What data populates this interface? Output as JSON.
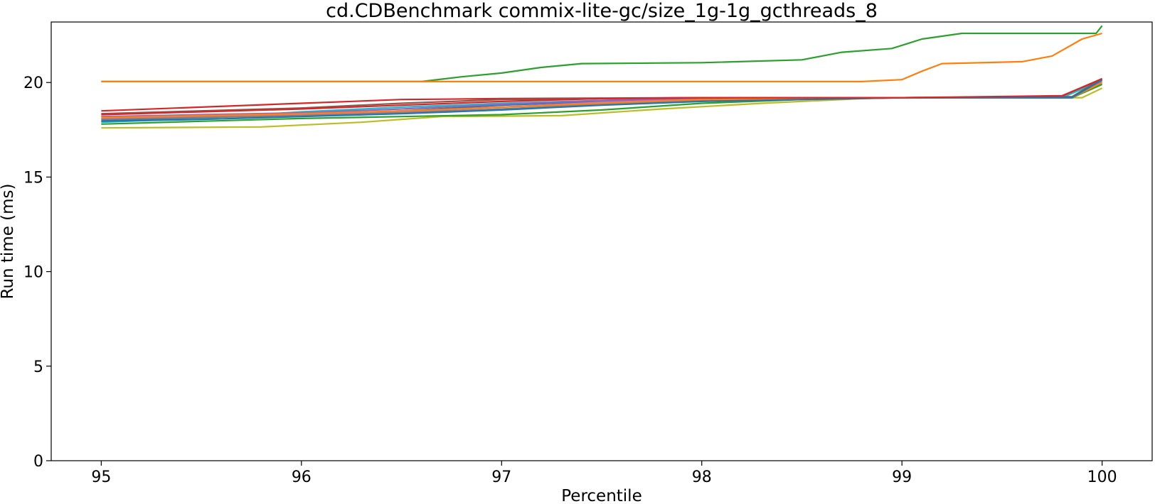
{
  "chart_data": {
    "type": "line",
    "title": "cd.CDBenchmark commix-lite-gc/size_1g-1g_gcthreads_8",
    "xlabel": "Percentile",
    "ylabel": "Run time (ms)",
    "xlim": [
      94.75,
      100.25
    ],
    "ylim": [
      0,
      23.2
    ],
    "xticks": [
      95,
      96,
      97,
      98,
      99,
      100
    ],
    "yticks": [
      0,
      5,
      10,
      15,
      20
    ],
    "grid": false,
    "legend": "none",
    "series": [
      {
        "color": "#2ca02c",
        "x": [
          95,
          96,
          96.6,
          96.8,
          97,
          97.2,
          97.4,
          98,
          98.5,
          98.7,
          98.95,
          99.1,
          99.3,
          99.9,
          99.97,
          100
        ],
        "y": [
          20.05,
          20.05,
          20.05,
          20.3,
          20.5,
          20.8,
          21.0,
          21.05,
          21.2,
          21.6,
          21.8,
          22.3,
          22.6,
          22.6,
          22.6,
          23.0
        ]
      },
      {
        "color": "#ff7f0e",
        "x": [
          95,
          97,
          98,
          98.8,
          99,
          99.1,
          99.2,
          99.6,
          99.75,
          99.9,
          100
        ],
        "y": [
          20.05,
          20.05,
          20.05,
          20.05,
          20.15,
          20.6,
          21.0,
          21.1,
          21.4,
          22.3,
          22.6
        ]
      },
      {
        "color": "#d62728",
        "x": [
          95,
          95.5,
          96,
          96.5,
          97,
          98,
          99,
          99.8,
          99.9,
          100
        ],
        "y": [
          18.5,
          18.7,
          18.9,
          19.1,
          19.15,
          19.2,
          19.2,
          19.25,
          19.7,
          20.2
        ]
      },
      {
        "color": "#bcbd22",
        "x": [
          95,
          95.8,
          96.3,
          96.7,
          97.3,
          97.8,
          98.3,
          98.8,
          99,
          99.9,
          100
        ],
        "y": [
          17.6,
          17.65,
          17.9,
          18.2,
          18.25,
          18.6,
          18.9,
          19.15,
          19.2,
          19.2,
          19.7
        ]
      },
      {
        "color": "#17becf",
        "x": [
          95,
          95.5,
          96,
          96.5,
          97,
          97.5,
          98,
          99,
          99.8,
          100
        ],
        "y": [
          17.9,
          18.1,
          18.45,
          18.7,
          18.9,
          19.05,
          19.15,
          19.2,
          19.2,
          20.1
        ]
      },
      {
        "color": "#1f77b4",
        "x": [
          95,
          95.5,
          96,
          96.5,
          97,
          97.5,
          98,
          99,
          99.85,
          100
        ],
        "y": [
          18.0,
          18.15,
          18.3,
          18.5,
          18.8,
          19.0,
          19.15,
          19.2,
          19.2,
          20.0
        ]
      },
      {
        "color": "#9467bd",
        "x": [
          95,
          95.5,
          96,
          96.5,
          97,
          97.5,
          98,
          99,
          99.85,
          100
        ],
        "y": [
          18.2,
          18.3,
          18.4,
          18.6,
          18.85,
          19.05,
          19.15,
          19.2,
          19.25,
          20.1
        ]
      },
      {
        "color": "#8c564b",
        "x": [
          95,
          95.5,
          96,
          96.5,
          97,
          97.5,
          98,
          99,
          99.85,
          100
        ],
        "y": [
          18.35,
          18.5,
          18.65,
          18.9,
          19.1,
          19.15,
          19.2,
          19.2,
          19.25,
          20.2
        ]
      },
      {
        "color": "#e377c2",
        "x": [
          95,
          95.5,
          96,
          96.5,
          97,
          97.5,
          98,
          99,
          99.85,
          100
        ],
        "y": [
          18.1,
          18.2,
          18.3,
          18.45,
          18.7,
          18.95,
          19.1,
          19.2,
          19.2,
          19.9
        ]
      },
      {
        "color": "#7f7f7f",
        "x": [
          95,
          95.5,
          96,
          96.5,
          97,
          97.5,
          98,
          99,
          99.85,
          100
        ],
        "y": [
          18.05,
          18.15,
          18.25,
          18.4,
          18.6,
          18.85,
          19.05,
          19.2,
          19.2,
          20.0
        ]
      },
      {
        "color": "#2ca02c",
        "x": [
          95,
          95.5,
          96,
          96.5,
          97,
          97.5,
          98,
          98.5,
          99,
          99.85,
          100
        ],
        "y": [
          17.8,
          17.95,
          18.1,
          18.2,
          18.3,
          18.55,
          18.9,
          19.1,
          19.2,
          19.2,
          19.9
        ]
      },
      {
        "color": "#ff7f0e",
        "x": [
          95,
          95.5,
          96,
          96.5,
          97,
          97.5,
          98,
          99,
          99.85,
          100
        ],
        "y": [
          18.15,
          18.25,
          18.35,
          18.5,
          18.7,
          18.9,
          19.1,
          19.2,
          19.2,
          20.0
        ]
      },
      {
        "color": "#1f77b4",
        "x": [
          95,
          95.5,
          96,
          96.5,
          97,
          97.5,
          98,
          99,
          99.85,
          100
        ],
        "y": [
          17.95,
          18.05,
          18.2,
          18.35,
          18.55,
          18.8,
          19.0,
          19.2,
          19.2,
          20.15
        ]
      },
      {
        "color": "#d62728",
        "x": [
          95,
          95.5,
          96,
          96.5,
          97,
          97.5,
          98,
          99,
          99.8,
          100
        ],
        "y": [
          18.3,
          18.45,
          18.6,
          18.8,
          19.0,
          19.15,
          19.2,
          19.2,
          19.3,
          20.2
        ]
      }
    ]
  }
}
